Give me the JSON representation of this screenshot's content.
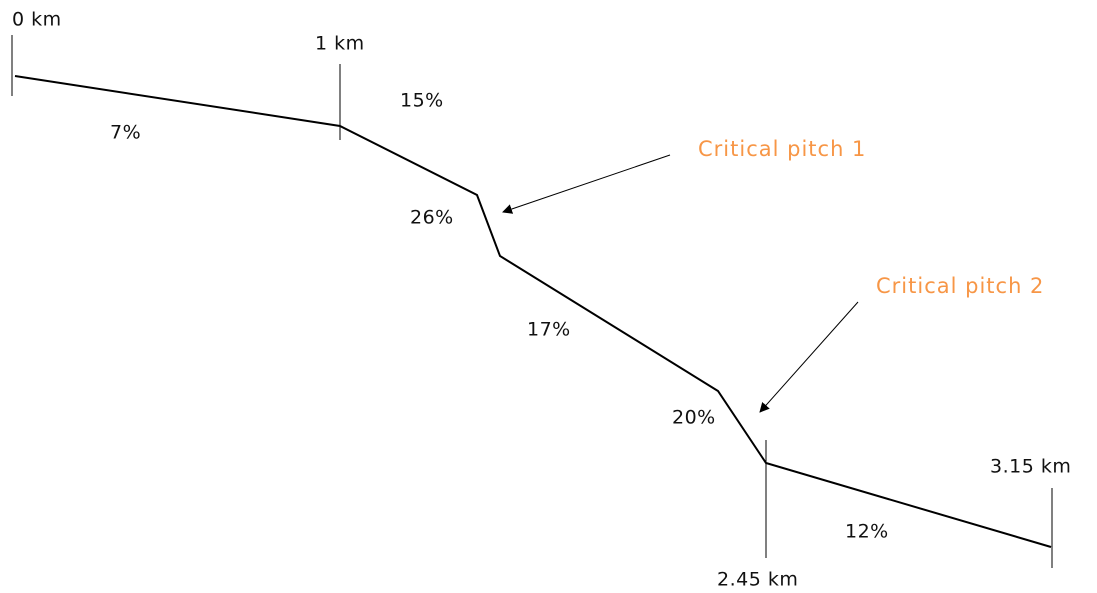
{
  "markers": [
    {
      "label": "0 km"
    },
    {
      "label": "1 km"
    },
    {
      "label": "2.45 km"
    },
    {
      "label": "3.15 km"
    }
  ],
  "segments": [
    {
      "label": "7%"
    },
    {
      "label": "15%"
    },
    {
      "label": "26%"
    },
    {
      "label": "17%"
    },
    {
      "label": "20%"
    },
    {
      "label": "12%"
    }
  ],
  "callouts": [
    {
      "label": "Critical pitch 1"
    },
    {
      "label": "Critical pitch 2"
    }
  ]
}
